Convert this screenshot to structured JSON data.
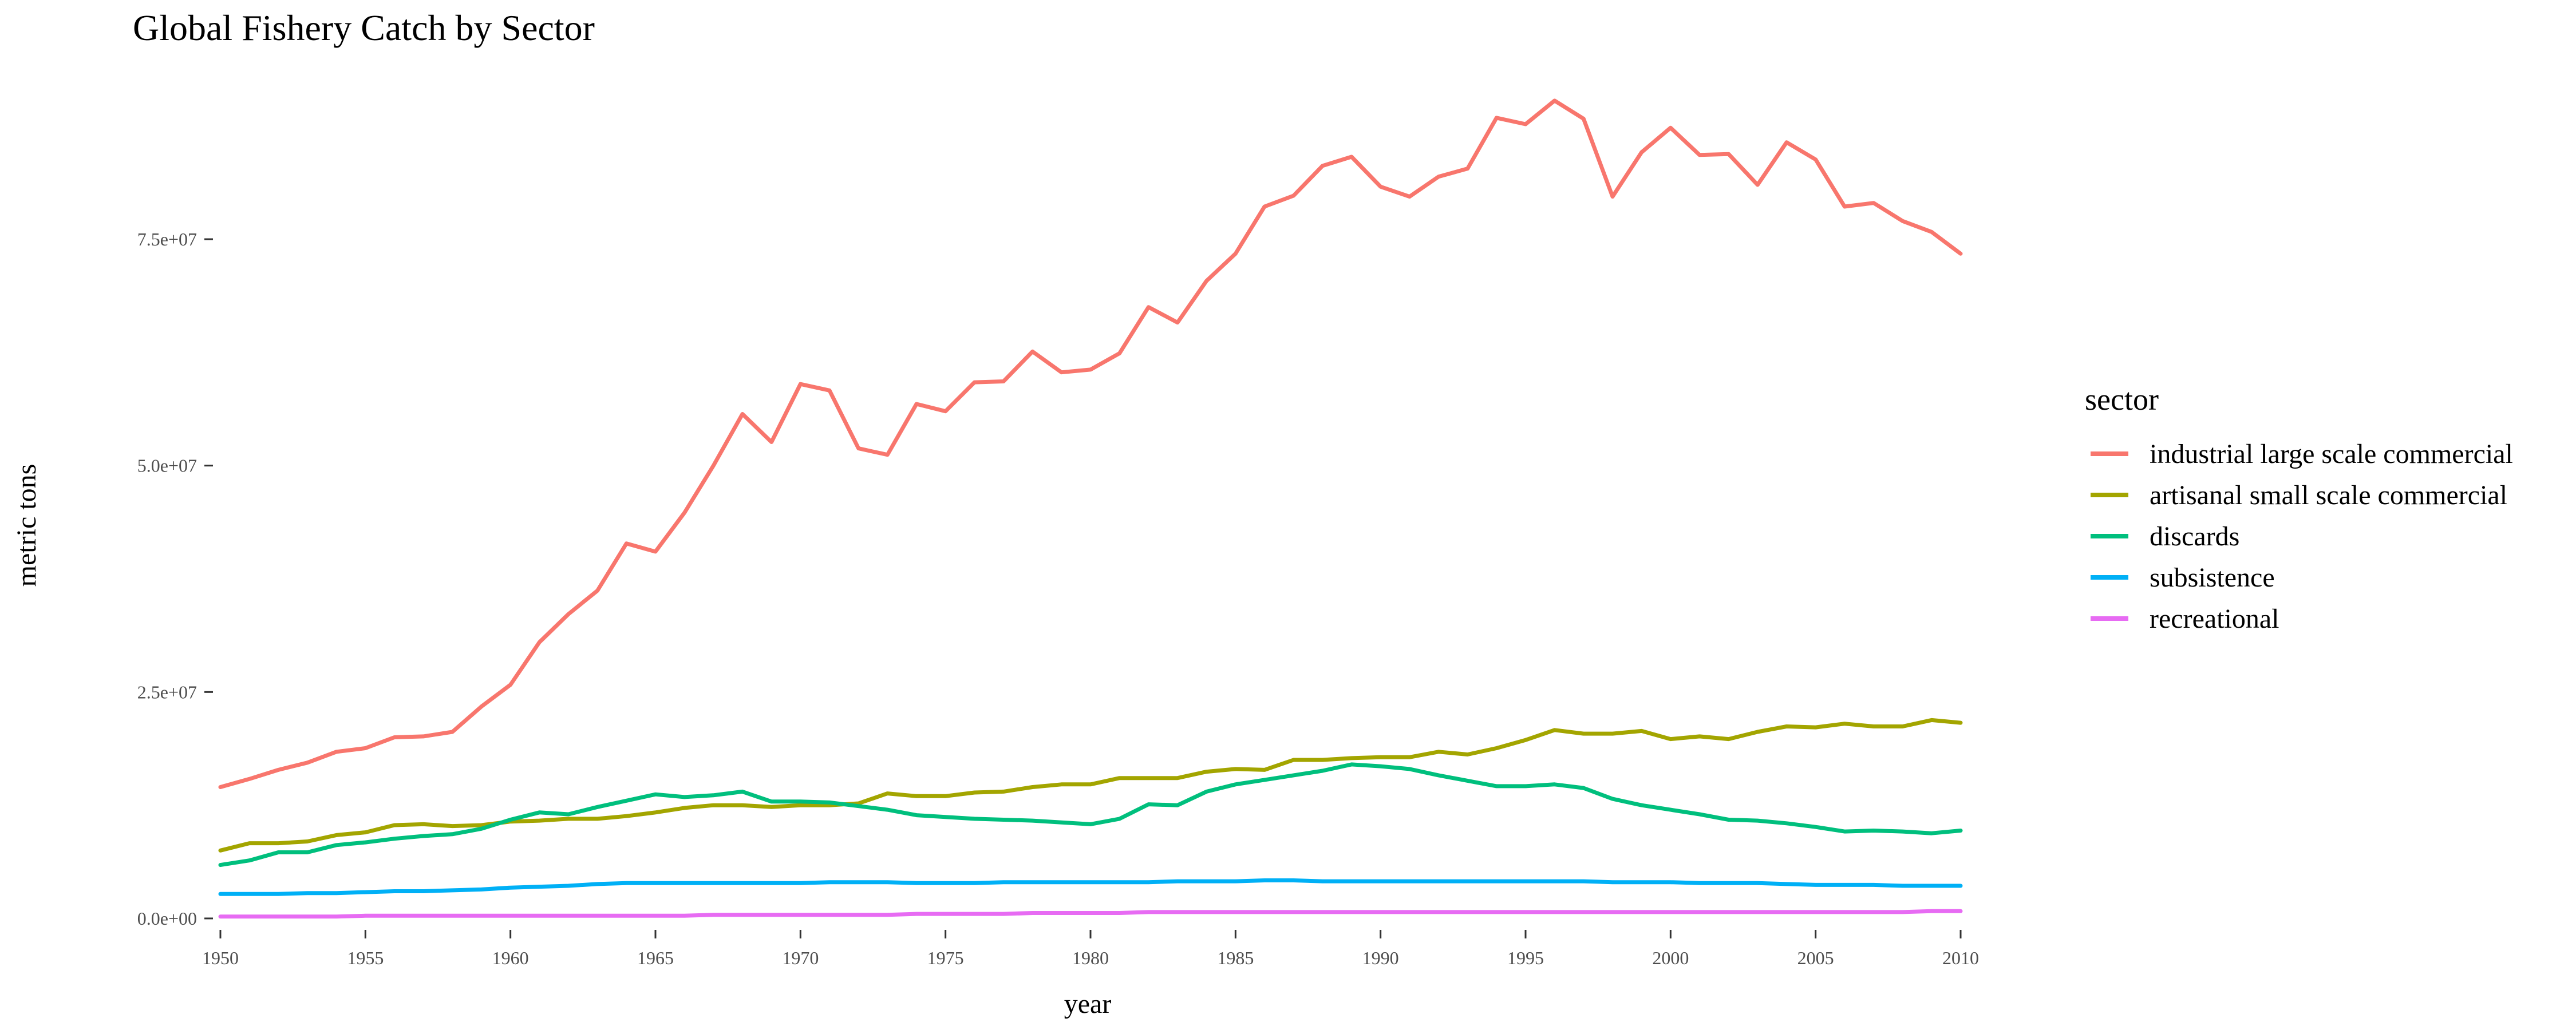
{
  "chart_data": {
    "type": "line",
    "title": "Global Fishery Catch by Sector",
    "xlabel": "year",
    "ylabel": "metric tons",
    "xlim": [
      1950,
      2010
    ],
    "ylim": [
      0,
      90000000
    ],
    "grid": false,
    "legend_position": "right",
    "legend_title": "sector",
    "x_ticks": [
      1950,
      1955,
      1960,
      1965,
      1970,
      1975,
      1980,
      1985,
      1990,
      1995,
      2000,
      2005,
      2010
    ],
    "x_tick_labels": [
      "1950",
      "1955",
      "1960",
      "1965",
      "1970",
      "1975",
      "1980",
      "1985",
      "1990",
      "1995",
      "2000",
      "2005",
      "2010"
    ],
    "y_ticks": [
      0,
      25000000,
      50000000,
      75000000
    ],
    "y_tick_labels": [
      "0.0e+00",
      "2.5e+07",
      "5.0e+07",
      "7.5e+07"
    ],
    "x": [
      1950,
      1951,
      1952,
      1953,
      1954,
      1955,
      1956,
      1957,
      1958,
      1959,
      1960,
      1961,
      1962,
      1963,
      1964,
      1965,
      1966,
      1967,
      1968,
      1969,
      1970,
      1971,
      1972,
      1973,
      1974,
      1975,
      1976,
      1977,
      1978,
      1979,
      1980,
      1981,
      1982,
      1983,
      1984,
      1985,
      1986,
      1987,
      1988,
      1989,
      1990,
      1991,
      1992,
      1993,
      1994,
      1995,
      1996,
      1997,
      1998,
      1999,
      2000,
      2001,
      2002,
      2003,
      2004,
      2005,
      2006,
      2007,
      2008,
      2009,
      2010
    ],
    "series": [
      {
        "name": "industrial large scale commercial",
        "color": "#F8766D",
        "values": [
          14500000,
          15400000,
          16400000,
          17200000,
          18400000,
          18800000,
          20000000,
          20100000,
          20600000,
          23400000,
          25800000,
          30500000,
          33600000,
          36200000,
          41400000,
          40500000,
          44800000,
          50000000,
          55700000,
          52600000,
          59000000,
          58300000,
          51900000,
          51200000,
          56800000,
          56000000,
          59200000,
          59300000,
          62600000,
          60300000,
          60600000,
          62400000,
          67500000,
          65800000,
          70400000,
          73400000,
          78600000,
          79800000,
          83100000,
          84100000,
          80800000,
          79700000,
          81900000,
          82800000,
          88400000,
          87700000,
          90300000,
          88300000,
          79700000,
          84600000,
          87300000,
          84300000,
          84400000,
          81000000,
          85700000,
          83800000,
          78600000,
          79000000,
          77000000,
          75800000,
          73400000
        ]
      },
      {
        "name": "artisanal small scale commercial",
        "color": "#A3A500",
        "values": [
          7500000,
          8300000,
          8300000,
          8500000,
          9200000,
          9500000,
          10300000,
          10400000,
          10200000,
          10300000,
          10700000,
          10800000,
          11000000,
          11000000,
          11300000,
          11700000,
          12200000,
          12500000,
          12500000,
          12300000,
          12500000,
          12500000,
          12700000,
          13800000,
          13500000,
          13500000,
          13900000,
          14000000,
          14500000,
          14800000,
          14800000,
          15500000,
          15500000,
          15500000,
          16200000,
          16500000,
          16400000,
          17500000,
          17500000,
          17700000,
          17800000,
          17800000,
          18400000,
          18100000,
          18800000,
          19700000,
          20800000,
          20400000,
          20400000,
          20700000,
          19800000,
          20100000,
          19800000,
          20600000,
          21200000,
          21100000,
          21500000,
          21200000,
          21200000,
          21900000,
          21600000
        ]
      },
      {
        "name": "discards",
        "color": "#00BF7D",
        "values": [
          5900000,
          6400000,
          7300000,
          7300000,
          8100000,
          8400000,
          8800000,
          9100000,
          9300000,
          9900000,
          10900000,
          11700000,
          11500000,
          12300000,
          13000000,
          13700000,
          13400000,
          13600000,
          14000000,
          12900000,
          12900000,
          12800000,
          12400000,
          12000000,
          11400000,
          11200000,
          11000000,
          10900000,
          10800000,
          10600000,
          10400000,
          11000000,
          12600000,
          12500000,
          14000000,
          14800000,
          15300000,
          15800000,
          16300000,
          17000000,
          16800000,
          16500000,
          15800000,
          15200000,
          14600000,
          14600000,
          14800000,
          14400000,
          13200000,
          12500000,
          12000000,
          11500000,
          10900000,
          10800000,
          10500000,
          10100000,
          9600000,
          9700000,
          9600000,
          9400000,
          9700000
        ]
      },
      {
        "name": "subsistence",
        "color": "#00B0F6",
        "values": [
          2700000,
          2700000,
          2700000,
          2800000,
          2800000,
          2900000,
          3000000,
          3000000,
          3100000,
          3200000,
          3400000,
          3500000,
          3600000,
          3800000,
          3900000,
          3900000,
          3900000,
          3900000,
          3900000,
          3900000,
          3900000,
          4000000,
          4000000,
          4000000,
          3900000,
          3900000,
          3900000,
          4000000,
          4000000,
          4000000,
          4000000,
          4000000,
          4000000,
          4100000,
          4100000,
          4100000,
          4200000,
          4200000,
          4100000,
          4100000,
          4100000,
          4100000,
          4100000,
          4100000,
          4100000,
          4100000,
          4100000,
          4100000,
          4000000,
          4000000,
          4000000,
          3900000,
          3900000,
          3900000,
          3800000,
          3700000,
          3700000,
          3700000,
          3600000,
          3600000,
          3600000
        ]
      },
      {
        "name": "recreational",
        "color": "#E76BF3",
        "values": [
          200000,
          200000,
          200000,
          200000,
          200000,
          300000,
          300000,
          300000,
          300000,
          300000,
          300000,
          300000,
          300000,
          300000,
          300000,
          300000,
          300000,
          400000,
          400000,
          400000,
          400000,
          400000,
          400000,
          400000,
          500000,
          500000,
          500000,
          500000,
          600000,
          600000,
          600000,
          600000,
          700000,
          700000,
          700000,
          700000,
          700000,
          700000,
          700000,
          700000,
          700000,
          700000,
          700000,
          700000,
          700000,
          700000,
          700000,
          700000,
          700000,
          700000,
          700000,
          700000,
          700000,
          700000,
          700000,
          700000,
          700000,
          700000,
          700000,
          800000,
          800000
        ]
      }
    ]
  }
}
